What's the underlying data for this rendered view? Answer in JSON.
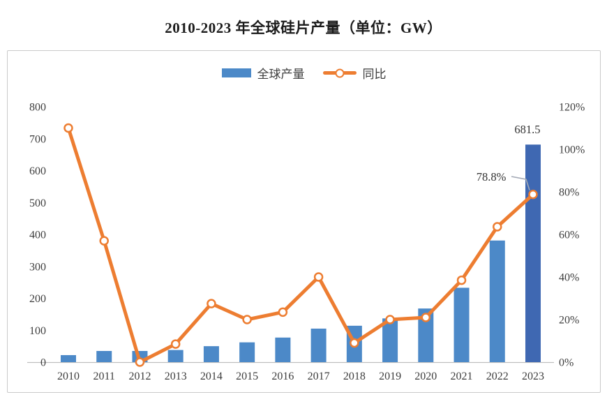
{
  "page": {
    "background": "#ffffff"
  },
  "chart_data": {
    "type": "bar",
    "subtype": "combo-bar-line-dual-axis",
    "title": "2010-2023 年全球硅片产量（单位：GW）",
    "categories": [
      "2010",
      "2011",
      "2012",
      "2013",
      "2014",
      "2015",
      "2016",
      "2017",
      "2018",
      "2019",
      "2020",
      "2021",
      "2022",
      "2023"
    ],
    "series": [
      {
        "name": "全球产量",
        "type": "bar",
        "axis": "left",
        "unit": "GW",
        "values": [
          22,
          35,
          35,
          38,
          50,
          62,
          77,
          105,
          114,
          137,
          168,
          233,
          381,
          681.5
        ],
        "color": "#4C89C8",
        "highlight_index": 13,
        "highlight_color": "#3F68B2"
      },
      {
        "name": "同比",
        "type": "line",
        "axis": "right",
        "unit": "%",
        "values": [
          110,
          57,
          0,
          8.5,
          27.5,
          20,
          23.5,
          40,
          9,
          20,
          21,
          38.5,
          63.6,
          78.8
        ],
        "color": "#ED7D31",
        "marker": "circle-open"
      }
    ],
    "left_axis": {
      "min": 0,
      "max": 800,
      "tick_step": 100,
      "tick_labels": [
        "0",
        "100",
        "200",
        "300",
        "400",
        "500",
        "600",
        "700",
        "800"
      ]
    },
    "right_axis": {
      "min": 0,
      "max": 120,
      "tick_step": 20,
      "tick_labels": [
        "0%",
        "20%",
        "40%",
        "60%",
        "80%",
        "100%",
        "120%"
      ]
    },
    "annotations": [
      {
        "target": "bar-2023",
        "text": "681.5"
      },
      {
        "target": "line-2023",
        "text": "78.8%",
        "leader_line": true
      }
    ],
    "grid": false,
    "legend_position": "top-center"
  },
  "colors": {
    "bar": "#4C89C8",
    "bar_highlight": "#3F68B2",
    "line": "#ED7D31",
    "marker_fill": "#FFFFFF",
    "axis_text": "#3d3d3d",
    "axis_line": "#BFBFBF",
    "frame_border": "#C9C9C9",
    "annotation_text": "#333333",
    "leader_line": "#A3A9B5"
  }
}
